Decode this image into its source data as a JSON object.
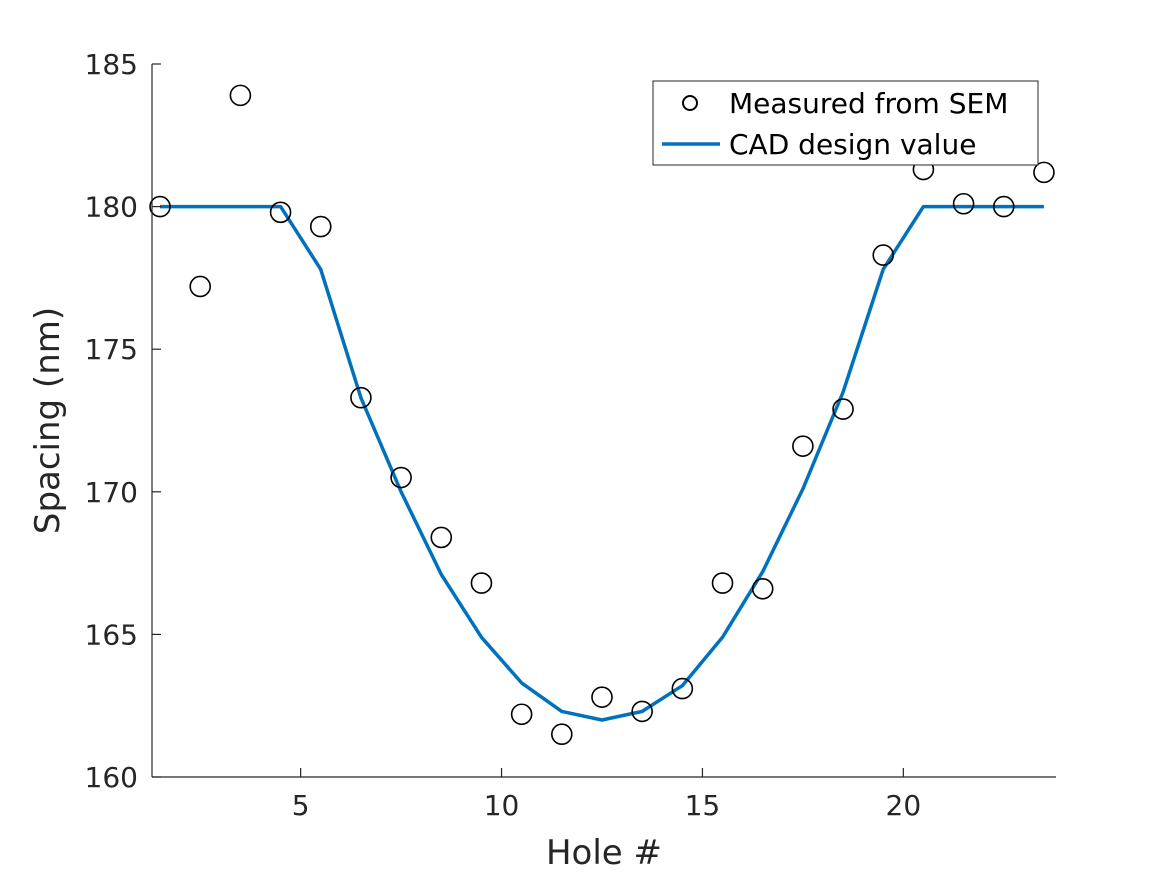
{
  "chart_data": {
    "type": "scatter",
    "xlabel": "Hole #",
    "ylabel": "Spacing (nm)",
    "xlim": [
      1.3,
      23.8
    ],
    "ylim": [
      160,
      185
    ],
    "xticks": [
      5,
      10,
      15,
      20
    ],
    "yticks": [
      160,
      165,
      170,
      175,
      180,
      185
    ],
    "grid": false,
    "legend_position": "top-right",
    "series": [
      {
        "name": "Measured from SEM",
        "kind": "markers",
        "marker": "open-circle",
        "color": "#000000",
        "x": [
          1.5,
          2.5,
          3.5,
          4.5,
          5.5,
          6.5,
          7.5,
          8.5,
          9.5,
          10.5,
          11.5,
          12.5,
          13.5,
          14.5,
          15.5,
          16.5,
          17.5,
          18.5,
          19.5,
          20.5,
          21.5,
          22.5,
          23.5
        ],
        "y": [
          180.0,
          177.2,
          183.9,
          179.8,
          179.3,
          173.3,
          170.5,
          168.4,
          166.8,
          162.2,
          161.5,
          162.8,
          162.3,
          163.1,
          166.8,
          166.6,
          171.6,
          172.9,
          178.3,
          181.3,
          180.1,
          180.0,
          181.2
        ]
      },
      {
        "name": "CAD design value",
        "kind": "line",
        "color": "#0072BD",
        "x": [
          1.5,
          2.5,
          3.5,
          4.5,
          5.5,
          6.5,
          7.5,
          8.5,
          9.5,
          10.5,
          11.5,
          12.5,
          13.5,
          14.5,
          15.5,
          16.5,
          17.5,
          18.5,
          19.5,
          20.5,
          21.5,
          22.5,
          23.5
        ],
        "y": [
          180.0,
          180.0,
          180.0,
          180.0,
          177.8,
          173.3,
          170.0,
          167.1,
          164.9,
          163.3,
          162.3,
          162.0,
          162.3,
          163.2,
          164.9,
          167.2,
          170.1,
          173.5,
          177.8,
          180.0,
          180.0,
          180.0,
          180.0
        ]
      }
    ]
  }
}
